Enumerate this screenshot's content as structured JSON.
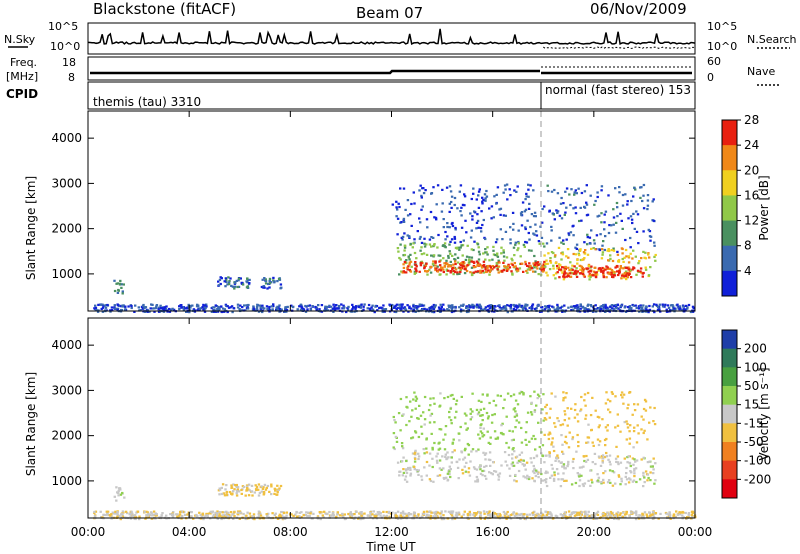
{
  "header": {
    "station": "Blackstone (fitACF)",
    "beam": "Beam 07",
    "date": "06/Nov/2009"
  },
  "summary_panels": {
    "nsky_label": "N.Sky",
    "nsky_ticks": [
      "10^5",
      "10^0"
    ],
    "nsearch_label": "N.Search",
    "nsearch_ticks": [
      "10^5",
      "10^0"
    ],
    "freq_label": "Freq.",
    "freq_unit": "[MHz]",
    "freq_ticks": [
      "18",
      "8"
    ],
    "nave_label": "Nave",
    "nave_ticks": [
      "60",
      "0"
    ],
    "cpid_label": "CPID",
    "cpid_segments": [
      {
        "label": "themis (tau) 3310",
        "start_hour": 0,
        "end_hour": 18
      },
      {
        "label": "normal (fast stereo) 153",
        "start_hour": 18,
        "end_hour": 24
      }
    ]
  },
  "chart_data": [
    {
      "type": "heatmap",
      "title": "",
      "xlabel": "Time UT",
      "ylabel": "Slant Range [km]",
      "x_range_hours": [
        0,
        24
      ],
      "xticks": [
        "00:00",
        "04:00",
        "08:00",
        "12:00",
        "16:00",
        "20:00",
        "00:00"
      ],
      "ylim": [
        180,
        4600
      ],
      "yticks": [
        "1000",
        "2000",
        "3000",
        "4000"
      ],
      "colorbar_label": "Power [dB]",
      "colorbar_ticks": [
        "4",
        "8",
        "12",
        "16",
        "20",
        "24",
        "28"
      ],
      "colors": [
        "#1020d8",
        "#3a6ab0",
        "#4a9060",
        "#90c848",
        "#f0d020",
        "#f08818",
        "#e82010"
      ],
      "echo_regions": [
        {
          "start_hour": 1.0,
          "end_hour": 1.4,
          "range_low_km": 550,
          "range_high_km": 900,
          "power_db": 10
        },
        {
          "start_hour": 5.1,
          "end_hour": 6.4,
          "range_low_km": 700,
          "range_high_km": 950,
          "power_db": 8
        },
        {
          "start_hour": 6.8,
          "end_hour": 7.6,
          "range_low_km": 700,
          "range_high_km": 950,
          "power_db": 7
        },
        {
          "start_hour": 0.2,
          "end_hour": 24.0,
          "range_low_km": 180,
          "range_high_km": 350,
          "power_db": 6
        },
        {
          "start_hour": 12.0,
          "end_hour": 18.0,
          "range_low_km": 1700,
          "range_high_km": 3000,
          "power_db": 6
        },
        {
          "start_hour": 12.2,
          "end_hour": 18.0,
          "range_low_km": 1000,
          "range_high_km": 1700,
          "power_db": 14
        },
        {
          "start_hour": 12.4,
          "end_hour": 18.0,
          "range_low_km": 1050,
          "range_high_km": 1300,
          "power_db": 26
        },
        {
          "start_hour": 18.0,
          "end_hour": 22.4,
          "range_low_km": 1500,
          "range_high_km": 3000,
          "power_db": 7
        },
        {
          "start_hour": 18.0,
          "end_hour": 22.4,
          "range_low_km": 900,
          "range_high_km": 1600,
          "power_db": 20
        },
        {
          "start_hour": 18.5,
          "end_hour": 22.0,
          "range_low_km": 950,
          "range_high_km": 1200,
          "power_db": 28
        }
      ]
    },
    {
      "type": "heatmap",
      "title": "",
      "xlabel": "Time UT",
      "ylabel": "Slant Range [km]",
      "x_range_hours": [
        0,
        24
      ],
      "xticks": [
        "00:00",
        "04:00",
        "08:00",
        "12:00",
        "16:00",
        "20:00",
        "00:00"
      ],
      "ylim": [
        180,
        4600
      ],
      "yticks": [
        "1000",
        "2000",
        "3000",
        "4000"
      ],
      "colorbar_label": "Velocity [m s⁻¹]",
      "colorbar_ticks": [
        "200",
        "100",
        "50",
        "15",
        "-15",
        "-50",
        "-100",
        "-200"
      ],
      "colors": [
        "#1f3ea8",
        "#2f7a5a",
        "#48a040",
        "#90d050",
        "#c8c8c8",
        "#f0c040",
        "#f08020",
        "#e84020",
        "#e00010"
      ],
      "echo_regions": [
        {
          "start_hour": 1.0,
          "end_hour": 1.4,
          "range_low_km": 550,
          "range_high_km": 900,
          "velocity_ms": 0
        },
        {
          "start_hour": 5.1,
          "end_hour": 7.6,
          "range_low_km": 700,
          "range_high_km": 950,
          "velocity_ms": -20
        },
        {
          "start_hour": 0.2,
          "end_hour": 24.0,
          "range_low_km": 180,
          "range_high_km": 350,
          "velocity_ms": -10
        },
        {
          "start_hour": 12.0,
          "end_hour": 18.0,
          "range_low_km": 1700,
          "range_high_km": 3000,
          "velocity_ms": 30
        },
        {
          "start_hour": 12.2,
          "end_hour": 18.0,
          "range_low_km": 1000,
          "range_high_km": 1700,
          "velocity_ms": 0
        },
        {
          "start_hour": 18.0,
          "end_hour": 22.4,
          "range_low_km": 1500,
          "range_high_km": 3000,
          "velocity_ms": -30
        },
        {
          "start_hour": 18.0,
          "end_hour": 22.4,
          "range_low_km": 900,
          "range_high_km": 1600,
          "velocity_ms": 0
        }
      ]
    }
  ]
}
